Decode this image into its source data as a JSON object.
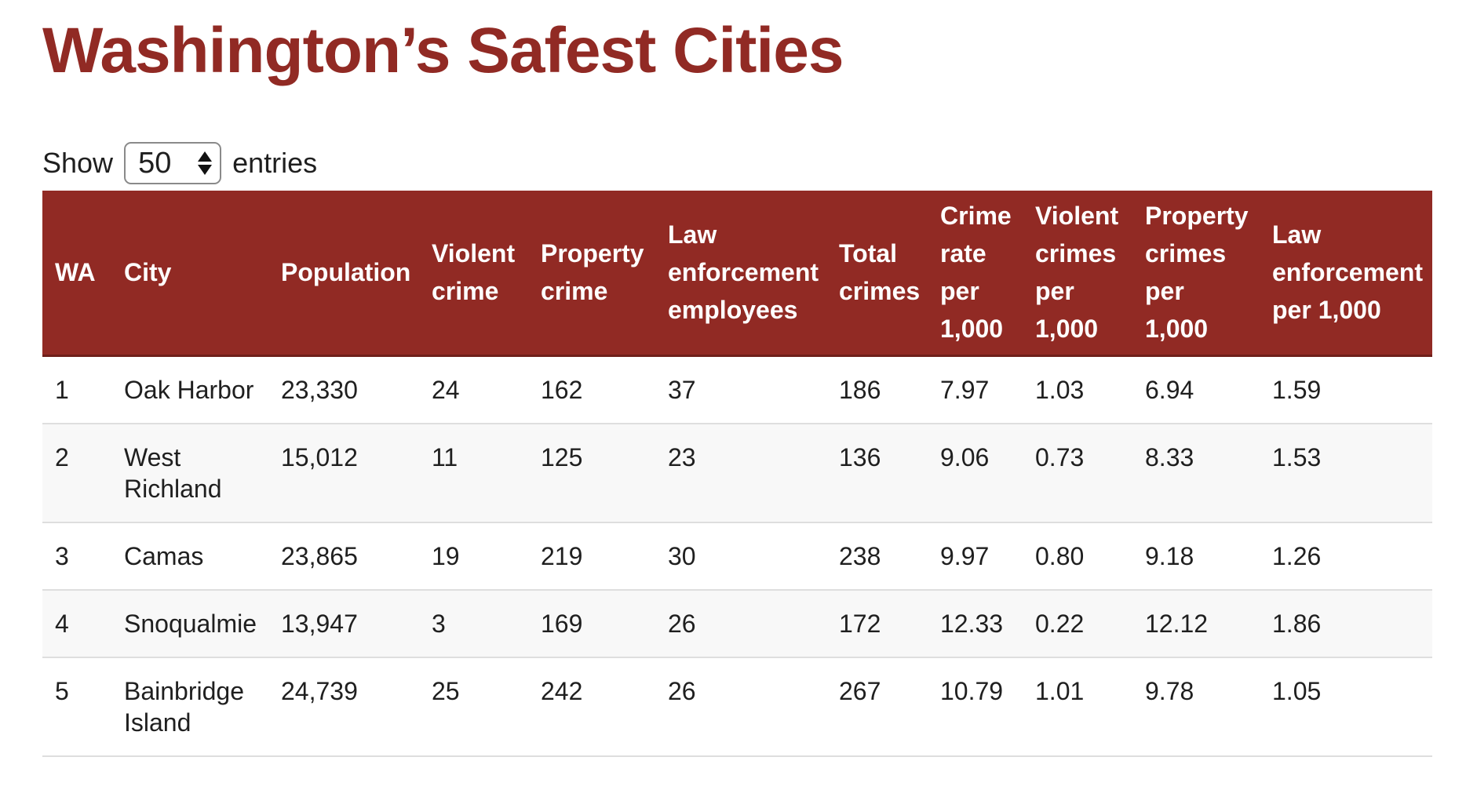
{
  "page": {
    "title": "Washington’s Safest Cities"
  },
  "length_control": {
    "prefix": "Show",
    "value": "50",
    "suffix": "entries"
  },
  "table": {
    "headers": [
      "WA",
      "City",
      "Population",
      "Violent crime",
      "Property crime",
      "Law enforcement employees",
      "Total crimes",
      "Crime rate per 1,000",
      "Violent crimes per 1,000",
      "Property crimes per 1,000",
      "Law enforcement per 1,000"
    ],
    "rows": [
      [
        "1",
        "Oak Harbor",
        "23,330",
        "24",
        "162",
        "37",
        "186",
        "7.97",
        "1.03",
        "6.94",
        "1.59"
      ],
      [
        "2",
        "West Richland",
        "15,012",
        "11",
        "125",
        "23",
        "136",
        "9.06",
        "0.73",
        "8.33",
        "1.53"
      ],
      [
        "3",
        "Camas",
        "23,865",
        "19",
        "219",
        "30",
        "238",
        "9.97",
        "0.80",
        "9.18",
        "1.26"
      ],
      [
        "4",
        "Snoqualmie",
        "13,947",
        "3",
        "169",
        "26",
        "172",
        "12.33",
        "0.22",
        "12.12",
        "1.86"
      ],
      [
        "5",
        "Bainbridge Island",
        "24,739",
        "25",
        "242",
        "26",
        "267",
        "10.79",
        "1.01",
        "9.78",
        "1.05"
      ]
    ]
  },
  "colors": {
    "accent": "#912a24",
    "header_text": "#ffffff",
    "stripe": "#f8f8f8"
  }
}
